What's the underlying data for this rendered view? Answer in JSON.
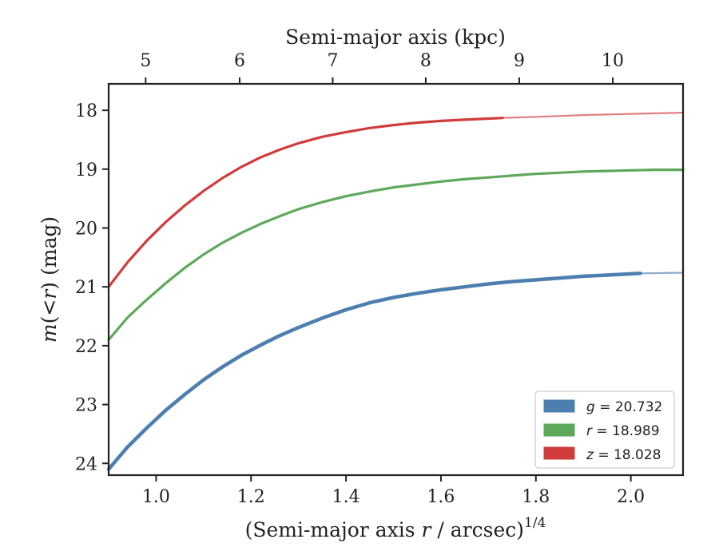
{
  "chart_data": {
    "type": "line",
    "xlabel": {
      "pre": "(Semi-major axis ",
      "var": "r",
      "post": " / arcsec)",
      "sup": "1/4"
    },
    "top_xlabel": "Semi-major axis (kpc)",
    "ylabel": {
      "var": "m",
      "mid": "(<",
      "var2": "r",
      "post": ") (mag)"
    },
    "xlim": [
      0.9,
      2.11
    ],
    "ylim": [
      24.2,
      17.55
    ],
    "y_inverted": true,
    "x_ticks": [
      1.0,
      1.2,
      1.4,
      1.6,
      1.8,
      2.0
    ],
    "x_tick_labels": [
      "1.0",
      "1.2",
      "1.4",
      "1.6",
      "1.8",
      "2.0"
    ],
    "y_ticks": [
      18,
      19,
      20,
      21,
      22,
      23,
      24
    ],
    "y_tick_labels": [
      "18",
      "19",
      "20",
      "21",
      "22",
      "23",
      "24"
    ],
    "top_ticks_kpc": [
      5,
      6,
      7,
      8,
      9,
      10
    ],
    "top_tick_labels": [
      "5",
      "6",
      "7",
      "8",
      "9",
      "10"
    ],
    "top_tick_positions_x": [
      0.978,
      1.176,
      1.372,
      1.568,
      1.765,
      1.962
    ],
    "grid": false,
    "legend_placement": "lower-right",
    "series": [
      {
        "name": "g",
        "legend_label": {
          "var": "g",
          "value": " = 20.732"
        },
        "color": "#4c7fb0",
        "width": "thick",
        "x": [
          0.9,
          0.94,
          0.98,
          1.02,
          1.06,
          1.1,
          1.14,
          1.18,
          1.22,
          1.26,
          1.3,
          1.35,
          1.4,
          1.45,
          1.5,
          1.55,
          1.6,
          1.65,
          1.7,
          1.75,
          1.8,
          1.85,
          1.9,
          1.95,
          2.02
        ],
        "y": [
          24.1,
          23.72,
          23.4,
          23.1,
          22.83,
          22.58,
          22.36,
          22.16,
          21.99,
          21.83,
          21.69,
          21.53,
          21.39,
          21.27,
          21.18,
          21.11,
          21.05,
          21.0,
          20.95,
          20.91,
          20.88,
          20.85,
          20.82,
          20.8,
          20.77
        ],
        "extension_x": [
          2.02,
          2.11
        ],
        "extension_y": [
          20.77,
          20.76
        ]
      },
      {
        "name": "r",
        "legend_label": {
          "var": "r",
          "value": " = 18.989"
        },
        "color": "#5ea85b",
        "width": "medium",
        "x": [
          0.9,
          0.94,
          0.98,
          1.02,
          1.06,
          1.1,
          1.14,
          1.18,
          1.22,
          1.26,
          1.3,
          1.35,
          1.4,
          1.45,
          1.5,
          1.55,
          1.6,
          1.65,
          1.7,
          1.75,
          1.8,
          1.85,
          1.9,
          1.95,
          2.0,
          2.05,
          2.11
        ],
        "y": [
          21.9,
          21.52,
          21.22,
          20.94,
          20.68,
          20.45,
          20.25,
          20.08,
          19.93,
          19.8,
          19.68,
          19.56,
          19.46,
          19.38,
          19.31,
          19.26,
          19.21,
          19.17,
          19.14,
          19.11,
          19.08,
          19.06,
          19.04,
          19.03,
          19.02,
          19.01,
          19.01
        ]
      },
      {
        "name": "z",
        "legend_label": {
          "var": "z",
          "value": " = 18.028"
        },
        "color": "#d03c3c",
        "width": "medium",
        "x": [
          0.9,
          0.94,
          0.98,
          1.02,
          1.06,
          1.1,
          1.14,
          1.18,
          1.22,
          1.26,
          1.3,
          1.35,
          1.4,
          1.45,
          1.5,
          1.55,
          1.6,
          1.65,
          1.7,
          1.73
        ],
        "y": [
          21.0,
          20.58,
          20.22,
          19.9,
          19.62,
          19.37,
          19.15,
          18.96,
          18.8,
          18.67,
          18.56,
          18.45,
          18.37,
          18.3,
          18.25,
          18.21,
          18.18,
          18.16,
          18.14,
          18.13
        ],
        "extension_x": [
          1.73,
          1.8,
          1.9,
          2.0,
          2.11
        ],
        "extension_y": [
          18.13,
          18.11,
          18.08,
          18.06,
          18.04
        ]
      }
    ]
  }
}
